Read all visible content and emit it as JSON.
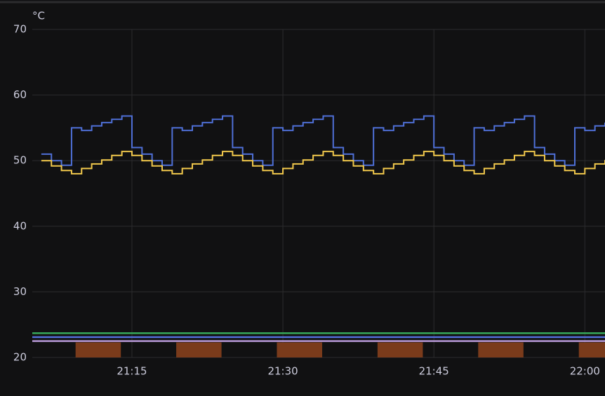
{
  "chart_data": {
    "type": "line",
    "unit": "°C",
    "x": [
      1266,
      1267,
      1268,
      1269,
      1270,
      1271,
      1272,
      1273,
      1274,
      1275,
      1276,
      1277,
      1278,
      1279,
      1280,
      1281,
      1282,
      1283,
      1284,
      1285,
      1286,
      1287,
      1288,
      1289,
      1290,
      1291,
      1292,
      1293,
      1294,
      1295,
      1296,
      1297,
      1298,
      1299,
      1300,
      1301,
      1302,
      1303,
      1304,
      1305,
      1306,
      1307,
      1308,
      1309,
      1310,
      1311,
      1312,
      1313,
      1314,
      1315,
      1316,
      1317,
      1318,
      1319,
      1320,
      1321,
      1322
    ],
    "series": [
      {
        "color": "#4f70d8",
        "values": [
          51,
          50,
          49.3,
          55,
          54.6,
          55.3,
          55.8,
          56.3,
          56.8,
          52,
          51,
          50,
          49.3,
          55,
          54.6,
          55.3,
          55.8,
          56.3,
          56.8,
          52,
          51,
          50,
          49.3,
          55,
          54.6,
          55.3,
          55.8,
          56.3,
          56.8,
          52,
          51,
          50,
          49.3,
          55,
          54.6,
          55.3,
          55.8,
          56.3,
          56.8,
          52,
          51,
          50,
          49.3,
          55,
          54.6,
          55.3,
          55.8,
          56.3,
          56.8,
          52,
          51,
          50,
          49.3,
          55,
          54.6,
          55.3,
          55.8
        ]
      },
      {
        "color": "#f2c94c",
        "values": [
          50,
          49.2,
          48.5,
          48,
          48.8,
          49.5,
          50.1,
          50.8,
          51.4,
          50.8,
          50,
          49.2,
          48.5,
          48,
          48.8,
          49.5,
          50.1,
          50.8,
          51.4,
          50.8,
          50,
          49.2,
          48.5,
          48,
          48.8,
          49.5,
          50.1,
          50.8,
          51.4,
          50.8,
          50,
          49.2,
          48.5,
          48,
          48.8,
          49.5,
          50.1,
          50.8,
          51.4,
          50.8,
          50,
          49.2,
          48.5,
          48,
          48.8,
          49.5,
          50.1,
          50.8,
          51.4,
          50.8,
          50,
          49.2,
          48.5,
          48,
          48.8,
          49.5,
          50.1
        ]
      }
    ],
    "flat_series": [
      {
        "color": "#37a85c",
        "x": [
          1265.1,
          1322
        ],
        "values": [
          23.7,
          23.7
        ]
      },
      {
        "color": "#5470dc",
        "x": [
          1265.1,
          1322
        ],
        "values": [
          23.1,
          23.1
        ]
      },
      {
        "color": "#b89ad8",
        "x": [
          1265.1,
          1322
        ],
        "values": [
          22.5,
          22.5
        ]
      }
    ],
    "heater": {
      "color": "#7a3b1b",
      "bars": [
        {
          "x": [
            1269.4,
            1273.9
          ],
          "value": 22.3
        },
        {
          "x": [
            1279.4,
            1283.9
          ],
          "value": 22.3
        },
        {
          "x": [
            1289.4,
            1293.9
          ],
          "value": 22.3
        },
        {
          "x": [
            1299.4,
            1303.9
          ],
          "value": 22.3
        },
        {
          "x": [
            1309.4,
            1313.9
          ],
          "value": 22.3
        },
        {
          "x": [
            1319.4,
            1322
          ],
          "value": 22.3
        }
      ]
    },
    "xlim": [
      1265.1,
      1322
    ],
    "xticks": [
      {
        "value": 1275,
        "label": "21:15"
      },
      {
        "value": 1290,
        "label": "21:30"
      },
      {
        "value": 1305,
        "label": "21:45"
      },
      {
        "value": 1320,
        "label": "22:00"
      }
    ],
    "ylim": [
      20,
      70
    ],
    "yticks": [
      20,
      30,
      40,
      50,
      60,
      70
    ],
    "grid": true
  }
}
